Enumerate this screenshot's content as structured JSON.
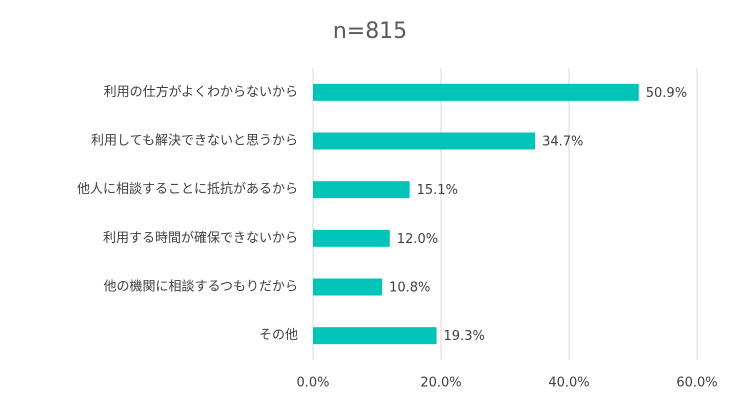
{
  "chart_data": {
    "type": "hbar",
    "title": "n=815",
    "categories": [
      "利用の仕方がよくわからないから",
      "利用しても解決できないと思うから",
      "他人に相談することに抵抗があるから",
      "利用する時間が確保できないから",
      "他の機関に相談するつもりだから",
      "その他"
    ],
    "values": [
      50.9,
      34.7,
      15.1,
      12.0,
      10.8,
      19.3
    ],
    "value_labels": [
      "50.9%",
      "34.7%",
      "15.1%",
      "12.0%",
      "10.8%",
      "19.3%"
    ],
    "color": "#00c4b8",
    "xlim": [
      0,
      60
    ],
    "xticks": [
      {
        "value": 0,
        "label": "0.0%"
      },
      {
        "value": 20,
        "label": "20.0%"
      },
      {
        "value": 40,
        "label": "40.0%"
      },
      {
        "value": 60,
        "label": "60.0%"
      }
    ],
    "grid": true
  }
}
